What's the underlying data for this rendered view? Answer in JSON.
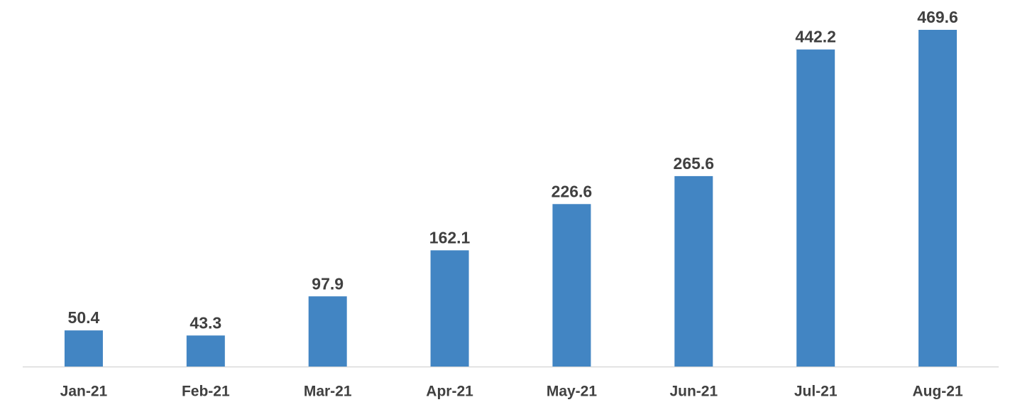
{
  "chart_data": {
    "type": "bar",
    "categories": [
      "Jan-21",
      "Feb-21",
      "Mar-21",
      "Apr-21",
      "May-21",
      "Jun-21",
      "Jul-21",
      "Aug-21"
    ],
    "values": [
      50.4,
      43.3,
      97.9,
      162.1,
      226.6,
      265.6,
      442.2,
      469.6
    ],
    "color": "#4285c3"
  }
}
